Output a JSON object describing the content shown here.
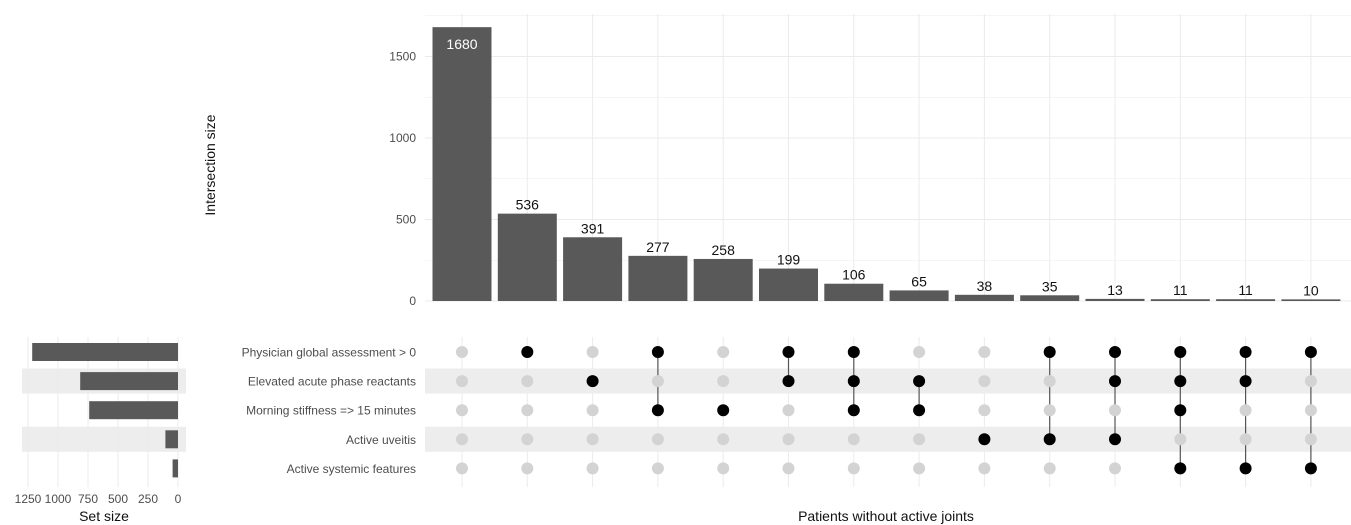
{
  "chart_data": {
    "type": "upset",
    "xlabel": "Patients without active joints",
    "ylabel": "Intersection size",
    "set_size_label": "Set size",
    "ylim": [
      0,
      1750
    ],
    "y_ticks": [
      "0",
      "500",
      "1000",
      "1500"
    ],
    "set_size_ticks": [
      "1250",
      "1000",
      "750",
      "500",
      "250",
      "0"
    ],
    "set_size_lim": [
      0,
      1300
    ],
    "sets": [
      {
        "name": "Physician global assessment > 0",
        "size": 1215
      },
      {
        "name": "Elevated acute phase reactants",
        "size": 815
      },
      {
        "name": "Morning stiffness => 15 minutes",
        "size": 740
      },
      {
        "name": "Active uveitis",
        "size": 105
      },
      {
        "name": "Active systemic features",
        "size": 45
      }
    ],
    "intersections": [
      {
        "value": 1680,
        "label": "1680",
        "members": []
      },
      {
        "value": 536,
        "label": "536",
        "members": [
          0
        ]
      },
      {
        "value": 391,
        "label": "391",
        "members": [
          1
        ]
      },
      {
        "value": 277,
        "label": "277",
        "members": [
          0,
          2
        ]
      },
      {
        "value": 258,
        "label": "258",
        "members": [
          2
        ]
      },
      {
        "value": 199,
        "label": "199",
        "members": [
          0,
          1
        ]
      },
      {
        "value": 106,
        "label": "106",
        "members": [
          0,
          1,
          2
        ]
      },
      {
        "value": 65,
        "label": "65",
        "members": [
          1,
          2
        ]
      },
      {
        "value": 38,
        "label": "38",
        "members": [
          3
        ]
      },
      {
        "value": 35,
        "label": "35",
        "members": [
          0,
          3
        ]
      },
      {
        "value": 13,
        "label": "13",
        "members": [
          0,
          1,
          3
        ]
      },
      {
        "value": 11,
        "label": "11",
        "members": [
          0,
          1,
          2,
          4
        ]
      },
      {
        "value": 11,
        "label": "11",
        "members": [
          0,
          1,
          4
        ]
      },
      {
        "value": 10,
        "label": "10",
        "members": [
          0,
          4
        ]
      }
    ],
    "colors": {
      "bar": "#595959",
      "dot_on": "#000000",
      "dot_off": "#d3d3d3",
      "stripe": "#ededed",
      "grid": "#ebebeb"
    }
  }
}
